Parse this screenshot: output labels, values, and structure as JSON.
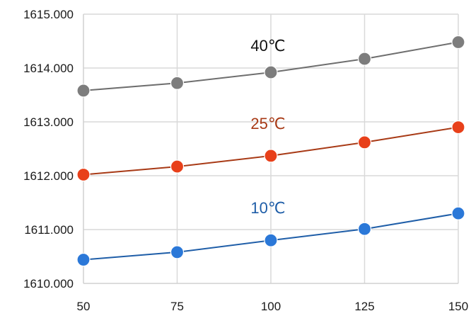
{
  "chart_data": {
    "type": "line",
    "x": [
      50,
      75,
      100,
      125,
      150
    ],
    "xticks": [
      "50",
      "75",
      "100",
      "125",
      "150"
    ],
    "yticks": [
      "1610.000",
      "1611.000",
      "1612.000",
      "1613.000",
      "1614.000",
      "1615.000"
    ],
    "xlim": [
      50,
      150
    ],
    "ylim": [
      1610,
      1615
    ],
    "grid": true,
    "legend": "inline labels above each line",
    "series": [
      {
        "name": "40℃",
        "color": "#6e6e6e",
        "marker_color": "#7d7d7d",
        "values": [
          1613.58,
          1613.72,
          1613.92,
          1614.17,
          1614.48
        ]
      },
      {
        "name": "25℃",
        "color": "#a83a16",
        "marker_color": "#e8401a",
        "values": [
          1612.02,
          1612.17,
          1612.37,
          1612.62,
          1612.9
        ]
      },
      {
        "name": "10℃",
        "color": "#1f5ea8",
        "marker_color": "#2b78d8",
        "values": [
          1610.44,
          1610.58,
          1610.8,
          1611.01,
          1611.3
        ]
      }
    ]
  }
}
